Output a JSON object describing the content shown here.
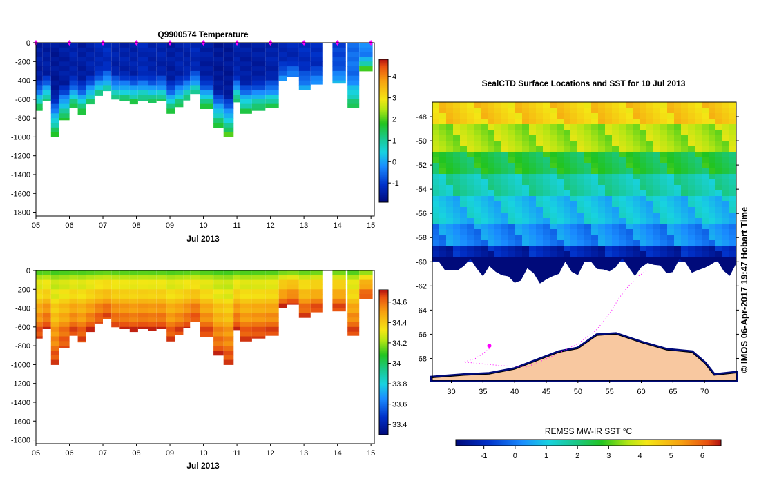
{
  "chart_data": [
    {
      "type": "heatmap",
      "title": "Q9900574  Temperature",
      "xlabel": "Jul 2013",
      "ylabel": "",
      "x_tick_labels": [
        "05",
        "06",
        "07",
        "08",
        "09",
        "10",
        "11",
        "12",
        "13",
        "14",
        "15"
      ],
      "x_ticks": [
        5,
        6,
        7,
        8,
        9,
        10,
        11,
        12,
        13,
        14,
        15
      ],
      "xlim": [
        5,
        15.1
      ],
      "y_ticks": [
        0,
        -200,
        -400,
        -600,
        -800,
        -1000,
        -1200,
        -1400,
        -1600,
        -1800
      ],
      "ylim": [
        -1840,
        0
      ],
      "colorbar": {
        "ticks": [
          -1,
          0,
          1,
          2,
          3,
          4
        ],
        "range": [
          -1.9,
          4.8
        ]
      },
      "profile_markers_day": [
        5.0,
        6.0,
        7.0,
        8.0,
        9.0,
        10.0,
        11.0,
        12.0,
        13.0,
        14.0,
        15.0
      ],
      "profiles": [
        {
          "d": 5.0,
          "w": 0.2,
          "depth": 720,
          "top": -1.5,
          "deep": 1.5
        },
        {
          "d": 5.2,
          "w": 0.25,
          "depth": 620,
          "top": -1.5,
          "deep": 1.2
        },
        {
          "d": 5.45,
          "w": 0.25,
          "depth": 1000,
          "top": -1.6,
          "deep": 1.8
        },
        {
          "d": 5.7,
          "w": 0.3,
          "depth": 820,
          "top": -1.5,
          "deep": 1.6
        },
        {
          "d": 6.0,
          "w": 0.25,
          "depth": 690,
          "top": -1.4,
          "deep": 1.5
        },
        {
          "d": 6.25,
          "w": 0.25,
          "depth": 760,
          "top": -1.5,
          "deep": 1.7
        },
        {
          "d": 6.5,
          "w": 0.25,
          "depth": 650,
          "top": -1.4,
          "deep": 1.3
        },
        {
          "d": 6.75,
          "w": 0.25,
          "depth": 560,
          "top": -1.3,
          "deep": 1.1
        },
        {
          "d": 7.0,
          "w": 0.25,
          "depth": 510,
          "top": -1.2,
          "deep": 0.9
        },
        {
          "d": 7.25,
          "w": 0.25,
          "depth": 600,
          "top": -1.4,
          "deep": 1.2
        },
        {
          "d": 7.5,
          "w": 0.3,
          "depth": 620,
          "top": -1.4,
          "deep": 1.4
        },
        {
          "d": 7.8,
          "w": 0.25,
          "depth": 650,
          "top": -1.4,
          "deep": 1.5
        },
        {
          "d": 8.05,
          "w": 0.3,
          "depth": 620,
          "top": -1.3,
          "deep": 1.3
        },
        {
          "d": 8.35,
          "w": 0.25,
          "depth": 640,
          "top": -1.4,
          "deep": 1.4
        },
        {
          "d": 8.6,
          "w": 0.3,
          "depth": 620,
          "top": -1.4,
          "deep": 1.3
        },
        {
          "d": 8.9,
          "w": 0.25,
          "depth": 750,
          "top": -1.5,
          "deep": 1.6
        },
        {
          "d": 9.15,
          "w": 0.25,
          "depth": 680,
          "top": -1.4,
          "deep": 1.5
        },
        {
          "d": 9.4,
          "w": 0.2,
          "depth": 610,
          "top": -1.4,
          "deep": 1.3
        },
        {
          "d": 9.6,
          "w": 0.3,
          "depth": 540,
          "top": -1.3,
          "deep": 1.1
        },
        {
          "d": 9.9,
          "w": 0.4,
          "depth": 700,
          "top": -1.5,
          "deep": 1.6
        },
        {
          "d": 10.3,
          "w": 0.3,
          "depth": 900,
          "top": -1.6,
          "deep": 1.7
        },
        {
          "d": 10.6,
          "w": 0.3,
          "depth": 1000,
          "top": -1.6,
          "deep": 1.9
        },
        {
          "d": 10.9,
          "w": 0.2,
          "depth": 630,
          "top": -1.4,
          "deep": 1.4
        },
        {
          "d": 11.1,
          "w": 0.35,
          "depth": 750,
          "top": -1.5,
          "deep": 1.5
        },
        {
          "d": 11.45,
          "w": 0.4,
          "depth": 720,
          "top": -1.5,
          "deep": 1.5
        },
        {
          "d": 11.85,
          "w": 0.4,
          "depth": 690,
          "top": -1.4,
          "deep": 1.4
        },
        {
          "d": 12.25,
          "w": 0.25,
          "depth": 400,
          "top": -1.3,
          "deep": -0.2
        },
        {
          "d": 12.5,
          "w": 0.35,
          "depth": 360,
          "top": -1.3,
          "deep": -0.3
        },
        {
          "d": 12.85,
          "w": 0.35,
          "depth": 500,
          "top": -1.2,
          "deep": 0.0
        },
        {
          "d": 13.2,
          "w": 0.35,
          "depth": 440,
          "top": -1.2,
          "deep": -0.2
        },
        {
          "d": 13.85,
          "w": 0.4,
          "depth": 430,
          "top": -0.9,
          "deep": 0.1
        },
        {
          "d": 14.3,
          "w": 0.35,
          "depth": 690,
          "top": -0.5,
          "deep": 1.5
        },
        {
          "d": 14.65,
          "w": 0.4,
          "depth": 300,
          "top": -0.3,
          "deep": 1.8
        }
      ]
    },
    {
      "type": "heatmap",
      "title": "",
      "xlabel": "Jul 2013",
      "ylabel": "",
      "x_tick_labels": [
        "05",
        "06",
        "07",
        "08",
        "09",
        "10",
        "11",
        "12",
        "13",
        "14",
        "15"
      ],
      "x_ticks": [
        5,
        6,
        7,
        8,
        9,
        10,
        11,
        12,
        13,
        14,
        15
      ],
      "xlim": [
        5,
        15.1
      ],
      "y_ticks": [
        0,
        -200,
        -400,
        -600,
        -800,
        -1000,
        -1200,
        -1400,
        -1600,
        -1800
      ],
      "ylim": [
        -1840,
        0
      ],
      "colorbar": {
        "ticks": [
          33.4,
          33.6,
          33.8,
          34,
          34.2,
          34.4,
          34.6
        ],
        "range": [
          33.3,
          34.72
        ]
      },
      "profiles_ref": "same profiles as temperature section, colored by salinity",
      "salinity_top": 34.1,
      "salinity_deep": 34.66
    },
    {
      "type": "heatmap",
      "title": "SealCTD Surface Locations and SST for 10 Jul 2013",
      "xlabel": "",
      "ylabel": "",
      "x_tick_labels": [
        "30",
        "35",
        "40",
        "45",
        "50",
        "55",
        "60",
        "65",
        "70"
      ],
      "x_ticks": [
        30,
        35,
        40,
        45,
        50,
        55,
        60,
        65,
        70
      ],
      "xlim": [
        27,
        75
      ],
      "y_tick_labels": [
        "-48",
        "-50",
        "-52",
        "-54",
        "-56",
        "-58",
        "-60",
        "-62",
        "-64",
        "-66",
        "-68"
      ],
      "y_ticks": [
        -48,
        -50,
        -52,
        -54,
        -56,
        -58,
        -60,
        -62,
        -64,
        -66,
        -68
      ],
      "ylim": [
        -69.8,
        -46.8
      ],
      "colorbar": {
        "label": "REMSS MW-IR SST °C",
        "ticks": [
          -1,
          0,
          1,
          2,
          3,
          4,
          5,
          6
        ],
        "range": [
          -1.9,
          6.6
        ]
      },
      "side_label": "© IMOS 06-Apr-2017 19:47 Hobart Time",
      "sst_bands": [
        {
          "lat_from": -46.8,
          "lat_to": -48.5,
          "temp": 4.6
        },
        {
          "lat_from": -48.5,
          "lat_to": -50.5,
          "temp": 3.6
        },
        {
          "lat_from": -50.5,
          "lat_to": -52.5,
          "temp": 2.5
        },
        {
          "lat_from": -52.5,
          "lat_to": -54.5,
          "temp": 1.6
        },
        {
          "lat_from": -54.5,
          "lat_to": -56.5,
          "temp": 0.9
        },
        {
          "lat_from": -56.5,
          "lat_to": -58.5,
          "temp": 0.2
        },
        {
          "lat_from": -58.5,
          "lat_to": -60.5,
          "temp": -1.2
        }
      ],
      "seal_track": [
        [
          36,
          -67.2
        ],
        [
          35,
          -67.6
        ],
        [
          33.8,
          -68
        ],
        [
          32,
          -68.3
        ],
        [
          38,
          -68.6
        ],
        [
          42,
          -68.7
        ],
        [
          46,
          -67.8
        ],
        [
          50,
          -66.8
        ],
        [
          53,
          -65.6
        ],
        [
          55,
          -64.3
        ],
        [
          56.5,
          -63
        ],
        [
          58,
          -62
        ],
        [
          59.5,
          -61.2
        ],
        [
          61,
          -60.7
        ]
      ]
    }
  ]
}
